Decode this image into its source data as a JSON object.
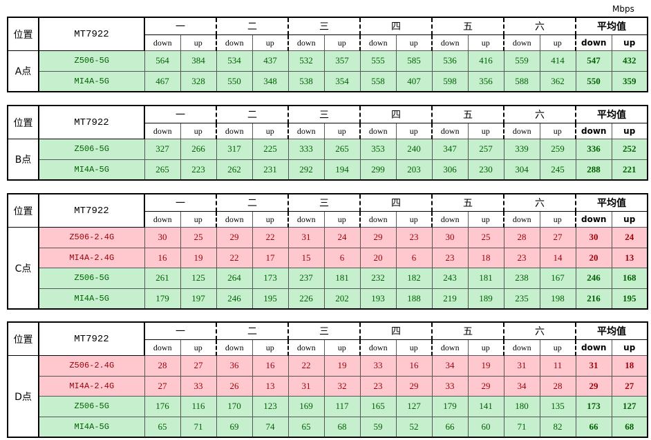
{
  "unit": "Mbps",
  "tables": [
    {
      "position": "位置",
      "device": "MT7922",
      "point": "A点",
      "groups": [
        "一",
        "二",
        "三",
        "四",
        "五",
        "六",
        "平均值"
      ],
      "subheaders": [
        "down",
        "up"
      ],
      "rows": [
        {
          "name": "Z506-5G",
          "fill": "#c6efce",
          "font_color": "#006100",
          "values": [
            564,
            384,
            534,
            437,
            532,
            357,
            555,
            585,
            536,
            416,
            559,
            414,
            547,
            432
          ]
        },
        {
          "name": "MI4A-5G",
          "fill": "#c6efce",
          "font_color": "#006100",
          "values": [
            467,
            328,
            550,
            348,
            538,
            354,
            558,
            407,
            598,
            356,
            588,
            362,
            550,
            359
          ]
        }
      ]
    },
    {
      "position": "位置",
      "device": "MT7922",
      "point": "B点",
      "groups": [
        "一",
        "二",
        "三",
        "四",
        "五",
        "六",
        "平均值"
      ],
      "subheaders": [
        "down",
        "up"
      ],
      "rows": [
        {
          "name": "Z506-5G",
          "fill": "#c6efce",
          "font_color": "#006100",
          "values": [
            327,
            266,
            317,
            225,
            333,
            265,
            353,
            240,
            347,
            257,
            339,
            259,
            336,
            252
          ]
        },
        {
          "name": "MI4A-5G",
          "fill": "#c6efce",
          "font_color": "#006100",
          "values": [
            265,
            223,
            262,
            231,
            292,
            194,
            299,
            203,
            306,
            230,
            304,
            245,
            288,
            221
          ]
        }
      ]
    },
    {
      "position": "位置",
      "device": "MT7922",
      "point": "C点",
      "groups": [
        "一",
        "二",
        "三",
        "四",
        "五",
        "六",
        "平均值"
      ],
      "subheaders": [
        "down",
        "up"
      ],
      "rows": [
        {
          "name": "Z506-2.4G",
          "fill": "#ffc7ce",
          "font_color": "#9c0006",
          "values": [
            30,
            25,
            29,
            22,
            31,
            24,
            29,
            23,
            30,
            25,
            28,
            27,
            30,
            24
          ]
        },
        {
          "name": "MI4A-2.4G",
          "fill": "#ffc7ce",
          "font_color": "#9c0006",
          "values": [
            16,
            19,
            22,
            17,
            15,
            6,
            20,
            6,
            23,
            18,
            23,
            14,
            20,
            13
          ]
        },
        {
          "name": "Z506-5G",
          "fill": "#c6efce",
          "font_color": "#006100",
          "values": [
            261,
            125,
            264,
            173,
            237,
            181,
            232,
            182,
            243,
            181,
            238,
            167,
            246,
            168
          ]
        },
        {
          "name": "MI4A-5G",
          "fill": "#c6efce",
          "font_color": "#006100",
          "values": [
            179,
            197,
            246,
            195,
            226,
            202,
            193,
            188,
            219,
            189,
            235,
            198,
            216,
            195
          ]
        }
      ]
    },
    {
      "position": "位置",
      "device": "MT7922",
      "point": "D点",
      "groups": [
        "一",
        "二",
        "三",
        "四",
        "五",
        "六",
        "平均值"
      ],
      "subheaders": [
        "down",
        "up"
      ],
      "rows": [
        {
          "name": "Z506-2.4G",
          "fill": "#ffc7ce",
          "font_color": "#9c0006",
          "values": [
            28,
            27,
            36,
            16,
            22,
            19,
            33,
            16,
            34,
            19,
            31,
            11,
            31,
            18
          ]
        },
        {
          "name": "MI4A-2.4G",
          "fill": "#ffc7ce",
          "font_color": "#9c0006",
          "values": [
            27,
            33,
            26,
            13,
            31,
            32,
            23,
            29,
            33,
            29,
            34,
            28,
            29,
            27
          ]
        },
        {
          "name": "Z506-5G",
          "fill": "#c6efce",
          "font_color": "#006100",
          "values": [
            176,
            116,
            170,
            123,
            169,
            117,
            165,
            127,
            179,
            141,
            180,
            135,
            173,
            127
          ]
        },
        {
          "name": "MI4A-5G",
          "fill": "#c6efce",
          "font_color": "#006100",
          "values": [
            65,
            71,
            69,
            74,
            65,
            68,
            59,
            52,
            66,
            60,
            71,
            82,
            66,
            68
          ]
        }
      ]
    }
  ]
}
